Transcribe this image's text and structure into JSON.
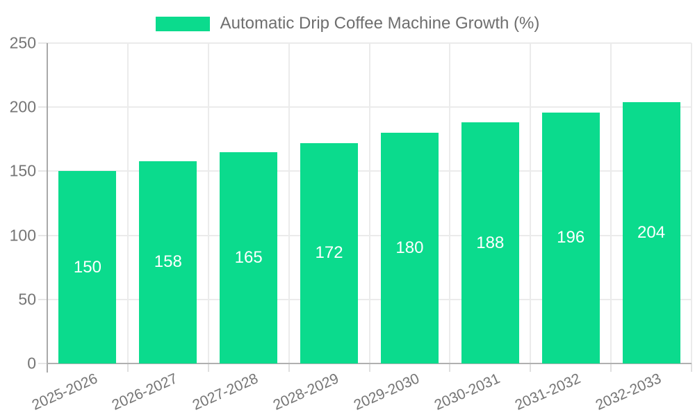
{
  "legend": {
    "label": "Automatic Drip Coffee Machine Growth (%)"
  },
  "chart_data": {
    "type": "bar",
    "title": "Automatic Drip Coffee Machine Growth (%)",
    "categories": [
      "2025-2026",
      "2026-2027",
      "2027-2028",
      "2028-2029",
      "2029-2030",
      "2030-2031",
      "2031-2032",
      "2032-2033"
    ],
    "values": [
      150,
      158,
      165,
      172,
      180,
      188,
      196,
      204
    ],
    "xlabel": "",
    "ylabel": "",
    "ylim": [
      0,
      250
    ],
    "yticks": [
      0,
      50,
      100,
      150,
      200,
      250
    ],
    "grid": true,
    "legend_position": "top-center",
    "value_labels": "inside-center",
    "bar_color": "#0bdb8d",
    "value_label_color": "#ffffff",
    "axis_color": "#a9a9a9",
    "grid_color": "#ebebeb",
    "tick_label_color": "#757575"
  }
}
